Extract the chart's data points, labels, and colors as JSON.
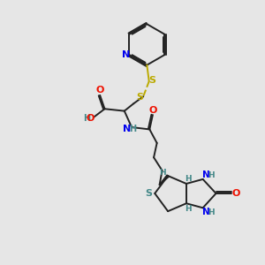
{
  "bg_color": "#e6e6e6",
  "bond_color": "#222222",
  "N_color": "#0000ee",
  "O_color": "#ee1100",
  "S_color": "#bbaa00",
  "S_teal_color": "#448888",
  "H_color": "#448888",
  "lw": 1.4,
  "xlim": [
    0,
    10
  ],
  "ylim": [
    0,
    10
  ]
}
